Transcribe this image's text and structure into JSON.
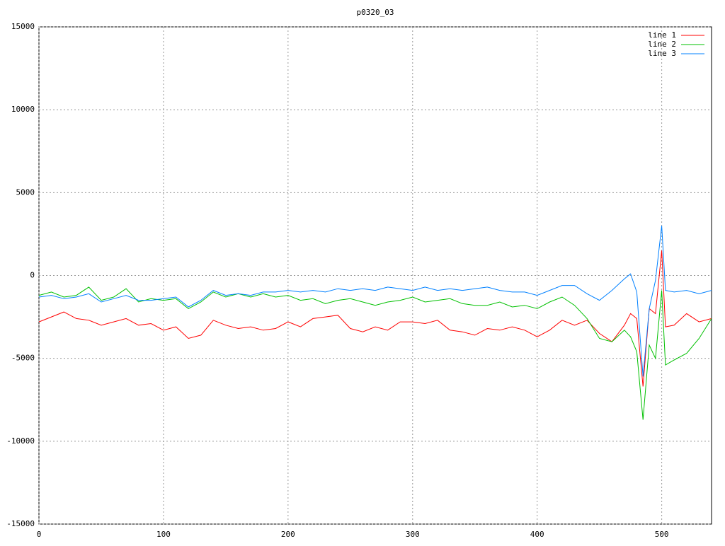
{
  "chart_data": {
    "type": "line",
    "title": "p0320_03",
    "x": [
      0,
      10,
      20,
      30,
      40,
      50,
      60,
      70,
      80,
      90,
      100,
      110,
      120,
      130,
      140,
      150,
      160,
      170,
      180,
      190,
      200,
      210,
      220,
      230,
      240,
      250,
      260,
      270,
      280,
      290,
      300,
      310,
      320,
      330,
      340,
      350,
      360,
      370,
      380,
      390,
      400,
      410,
      420,
      430,
      440,
      450,
      460,
      470,
      475,
      480,
      485,
      490,
      495,
      500,
      503,
      510,
      520,
      530,
      540
    ],
    "series": [
      {
        "name": "line 1",
        "color": "#ff0000",
        "values": [
          -2800,
          -2500,
          -2200,
          -2600,
          -2700,
          -3000,
          -2800,
          -2600,
          -3000,
          -2900,
          -3300,
          -3100,
          -3800,
          -3600,
          -2700,
          -3000,
          -3200,
          -3100,
          -3300,
          -3200,
          -2800,
          -3100,
          -2600,
          -2500,
          -2400,
          -3200,
          -3400,
          -3100,
          -3300,
          -2800,
          -2800,
          -2900,
          -2700,
          -3300,
          -3400,
          -3600,
          -3200,
          -3300,
          -3100,
          -3300,
          -3700,
          -3300,
          -2700,
          -3000,
          -2700,
          -3500,
          -4000,
          -3000,
          -2300,
          -2600,
          -6700,
          -2000,
          -2300,
          1500,
          -3100,
          -3000,
          -2300,
          -2800,
          -2600
        ]
      },
      {
        "name": "line 2",
        "color": "#00c000",
        "values": [
          -1200,
          -1000,
          -1300,
          -1200,
          -700,
          -1500,
          -1300,
          -800,
          -1600,
          -1400,
          -1500,
          -1400,
          -2000,
          -1600,
          -1000,
          -1300,
          -1100,
          -1300,
          -1100,
          -1300,
          -1200,
          -1500,
          -1400,
          -1700,
          -1500,
          -1400,
          -1600,
          -1800,
          -1600,
          -1500,
          -1300,
          -1600,
          -1500,
          -1400,
          -1700,
          -1800,
          -1800,
          -1600,
          -1900,
          -1800,
          -2000,
          -1600,
          -1300,
          -1800,
          -2600,
          -3800,
          -4000,
          -3300,
          -3700,
          -4600,
          -8700,
          -4200,
          -5000,
          -900,
          -5400,
          -5100,
          -4700,
          -3800,
          -2600
        ]
      },
      {
        "name": "line 3",
        "color": "#0080ff",
        "values": [
          -1300,
          -1200,
          -1400,
          -1300,
          -1100,
          -1600,
          -1400,
          -1200,
          -1500,
          -1500,
          -1400,
          -1300,
          -1900,
          -1500,
          -900,
          -1200,
          -1100,
          -1200,
          -1000,
          -1000,
          -900,
          -1000,
          -900,
          -1000,
          -800,
          -900,
          -800,
          -900,
          -700,
          -800,
          -900,
          -700,
          -900,
          -800,
          -900,
          -800,
          -700,
          -900,
          -1000,
          -1000,
          -1200,
          -900,
          -600,
          -600,
          -1100,
          -1500,
          -900,
          -200,
          100,
          -1000,
          -6100,
          -2000,
          -300,
          3000,
          -900,
          -1000,
          -900,
          -1100,
          -900
        ]
      }
    ],
    "xlim": [
      0,
      540
    ],
    "xticks": [
      0,
      100,
      200,
      300,
      400,
      500
    ],
    "ylim": [
      -15000,
      15000
    ],
    "yticks": [
      -15000,
      -10000,
      -5000,
      0,
      5000,
      10000,
      15000
    ],
    "grid": true,
    "legend": "top-right"
  }
}
